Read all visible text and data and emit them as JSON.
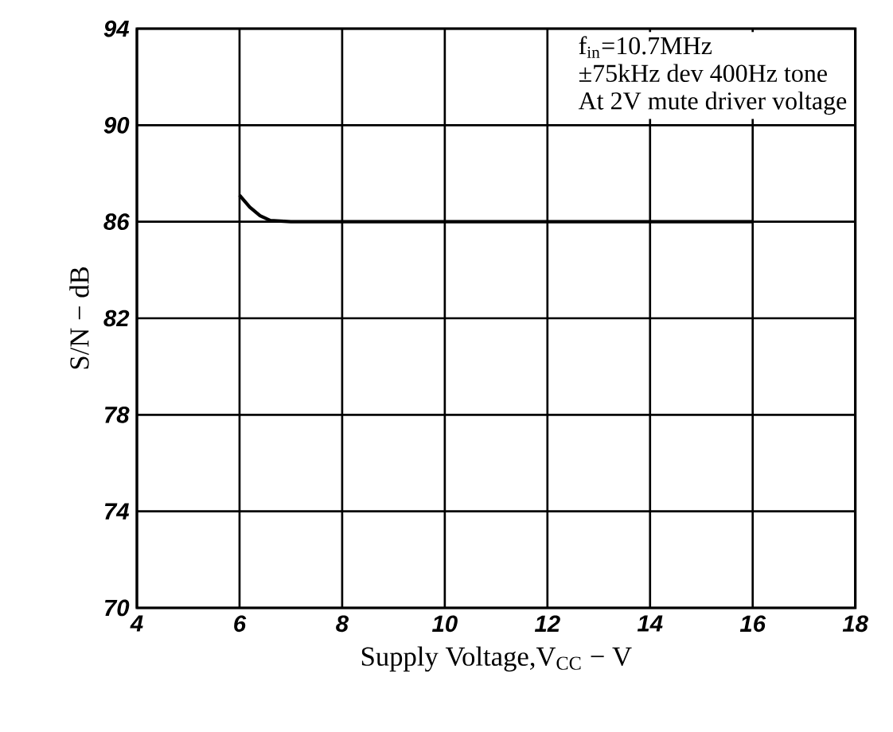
{
  "chart_data": {
    "type": "line",
    "xlabel": "Supply Voltage,V$_{CC}$ − V",
    "ylabel": "S/N − dB",
    "annotations": [
      "f$_{in}$=10.7MHz",
      "±75kHz dev 400Hz  tone",
      "At 2V mute driver voltage"
    ],
    "series": [
      {
        "color": "#000000",
        "x": [
          6,
          6.2,
          6.4,
          6.6,
          7,
          10,
          14,
          16
        ],
        "values": [
          87.1,
          86.6,
          86.25,
          86.05,
          86,
          86,
          86,
          86
        ]
      }
    ],
    "xlim": [
      4,
      18
    ],
    "xticks": [
      4,
      6,
      8,
      10,
      12,
      14,
      16,
      18
    ],
    "ylim": [
      70,
      94
    ],
    "yticks": [
      70,
      74,
      78,
      82,
      86,
      90,
      94
    ],
    "grid": true,
    "line_style": "solid",
    "marker": "none"
  }
}
